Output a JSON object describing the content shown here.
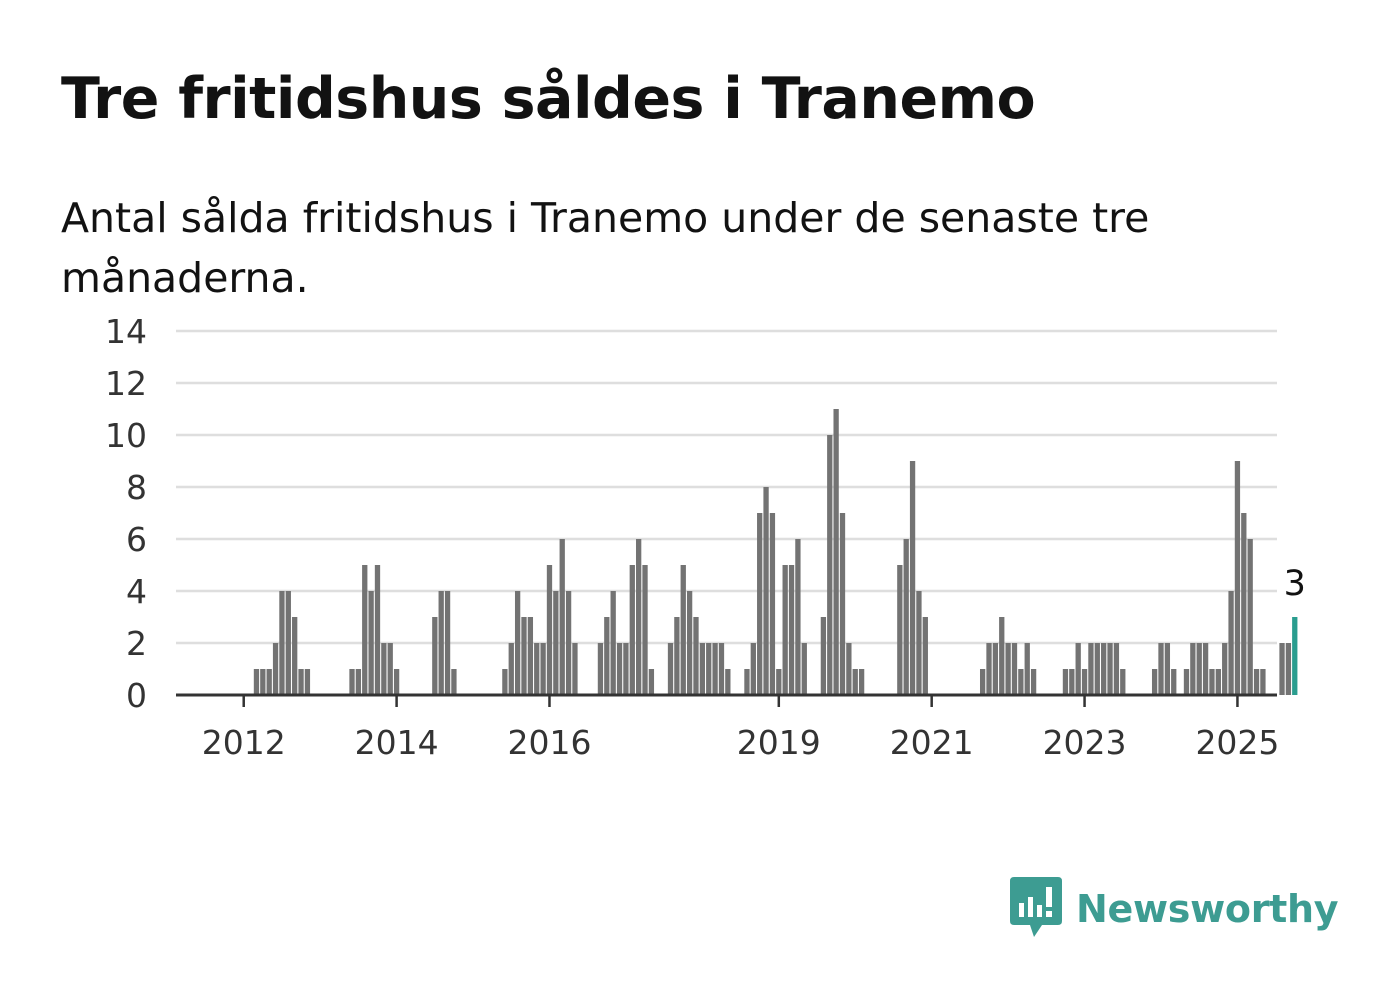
{
  "title": "Tre fritidshus såldes i Tranemo",
  "subtitle": "Antal sålda fritidshus i Tranemo under de senaste tre månaderna.",
  "brand": {
    "name": "Newsworthy",
    "icon": "newsworthy-logo-icon",
    "color": "#3d9c92"
  },
  "chart_data": {
    "type": "bar",
    "title": "",
    "xlabel": "",
    "ylabel": "",
    "ylim": [
      0,
      14
    ],
    "yticks": [
      0,
      2,
      4,
      6,
      8,
      10,
      12,
      14
    ],
    "xticks": [
      "2012",
      "2014",
      "2016",
      "2019",
      "2021",
      "2023",
      "2025"
    ],
    "grid": true,
    "legend": "none",
    "bar_color": "#737373",
    "highlight_color": "#2a9d8f",
    "series": [
      {
        "values": [
          0,
          0,
          0,
          0,
          0,
          0,
          0,
          0,
          1,
          1,
          1,
          2,
          4,
          4,
          3,
          1,
          1,
          0,
          0,
          0,
          0,
          0,
          0,
          1,
          1,
          5,
          4,
          5,
          2,
          2,
          1,
          0,
          0,
          0,
          0,
          0,
          3,
          4,
          4,
          1,
          0,
          0,
          0,
          0,
          0,
          0,
          0,
          1,
          2,
          4,
          3,
          3,
          2,
          2,
          5,
          4,
          6,
          4,
          2,
          0,
          0,
          0,
          2,
          3,
          4,
          2,
          2,
          5,
          6,
          5,
          1,
          0,
          0,
          2,
          3,
          5,
          4,
          3,
          2,
          2,
          2,
          2,
          1,
          0,
          0,
          1,
          2,
          7,
          8,
          7,
          1,
          5,
          5,
          6,
          2,
          0,
          0,
          3,
          10,
          11,
          7,
          2,
          1,
          1,
          0,
          0,
          0,
          0,
          0,
          5,
          6,
          9,
          4,
          3,
          0,
          0,
          0,
          0,
          0,
          0,
          0,
          0,
          1,
          2,
          2,
          3,
          2,
          2,
          1,
          2,
          1,
          0,
          0,
          0,
          0,
          1,
          1,
          2,
          1,
          2,
          2,
          2,
          2,
          2,
          1,
          0,
          0,
          0,
          0,
          1,
          2,
          2,
          1,
          0,
          1,
          2,
          2,
          2,
          1,
          1,
          2,
          4,
          9,
          7,
          6,
          1,
          1,
          0,
          0,
          2,
          2,
          3
        ]
      }
    ],
    "highlight": {
      "label": "3",
      "value": 3
    }
  }
}
